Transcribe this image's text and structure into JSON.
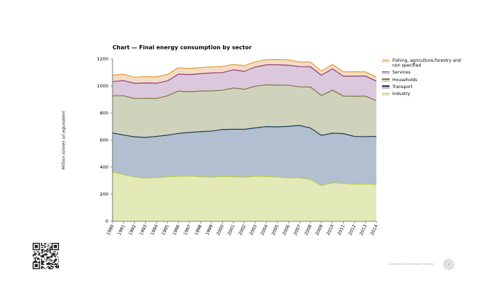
{
  "page": {
    "title": "Chart — Final energy consumption by sector",
    "agency": "European Environment Agency"
  },
  "colors": {
    "industry_fill": "#e4e9b8",
    "industry_line": "#b7c94a",
    "transport_fill": "#b1bfd0",
    "transport_line": "#1e3550",
    "households_fill": "#cfd3bb",
    "households_line": "#7a7344",
    "services_fill": "#dcc8dc",
    "services_line": "#8b3a7e",
    "fishing_fill": "#f4dcc4",
    "fishing_line": "#e09a30",
    "axis": "#555555"
  },
  "chart_data": {
    "type": "area",
    "stacked": true,
    "title": "Chart — Final energy consumption by sector",
    "xlabel": "",
    "ylabel": "Million tonnes oil equivalent",
    "ylim": [
      0,
      1200
    ],
    "yticks": [
      0,
      200,
      400,
      600,
      800,
      1000,
      1200
    ],
    "grid": false,
    "legend_position": "right",
    "x": [
      "1990",
      "1991",
      "1992",
      "1993",
      "1994",
      "1995",
      "1996",
      "1997",
      "1998",
      "1999",
      "2000",
      "2001",
      "2002",
      "2003",
      "2004",
      "2005",
      "2006",
      "2007",
      "2008",
      "2009",
      "2010",
      "2011",
      "2012",
      "2013",
      "2014"
    ],
    "series": [
      {
        "name": "Industry",
        "key": "industry",
        "values": [
          365,
          345,
          328,
          320,
          323,
          330,
          333,
          335,
          330,
          327,
          332,
          330,
          327,
          334,
          332,
          328,
          322,
          322,
          310,
          265,
          285,
          280,
          275,
          276,
          273
        ]
      },
      {
        "name": "Transport",
        "key": "transport",
        "values": [
          288,
          293,
          297,
          300,
          305,
          307,
          317,
          322,
          333,
          340,
          347,
          350,
          353,
          357,
          368,
          370,
          380,
          387,
          380,
          370,
          367,
          368,
          353,
          350,
          355
        ]
      },
      {
        "name": "Households",
        "key": "households",
        "values": [
          275,
          290,
          283,
          290,
          280,
          291,
          313,
          300,
          300,
          297,
          290,
          306,
          296,
          308,
          309,
          309,
          304,
          285,
          303,
          295,
          317,
          278,
          297,
          300,
          263
        ]
      },
      {
        "name": "Services",
        "key": "services",
        "values": [
          105,
          112,
          112,
          113,
          113,
          110,
          125,
          127,
          128,
          133,
          130,
          134,
          133,
          142,
          148,
          150,
          148,
          150,
          150,
          150,
          158,
          147,
          148,
          148,
          145
        ]
      },
      {
        "name": "Fishing, agriculture,forestry and non specified",
        "key": "fishing",
        "values": [
          47,
          47,
          45,
          47,
          47,
          48,
          47,
          46,
          45,
          44,
          46,
          40,
          42,
          38,
          38,
          40,
          40,
          34,
          35,
          30,
          33,
          32,
          32,
          31,
          31
        ]
      }
    ],
    "legend_order": [
      "fishing",
      "services",
      "households",
      "transport",
      "industry"
    ]
  }
}
